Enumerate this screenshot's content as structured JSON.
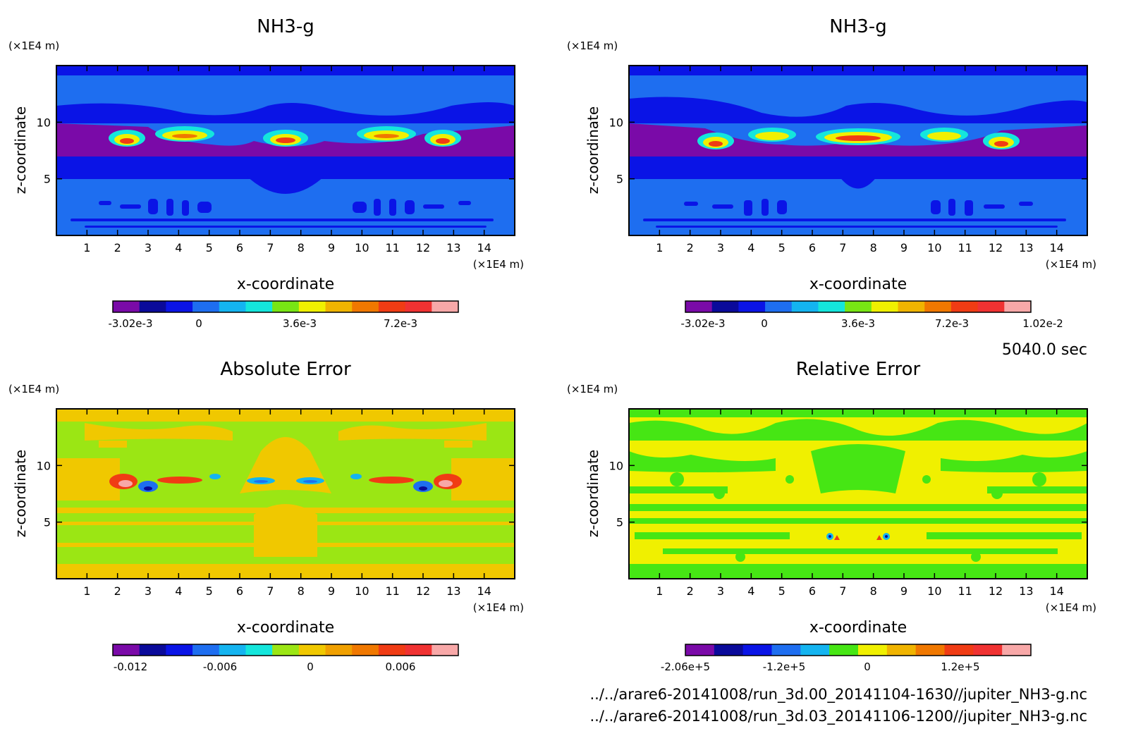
{
  "time_label": "5040.0 sec",
  "footer": {
    "file1": "../../arare6-20141008/run_3d.00_20141104-1630//jupiter_NH3-g.nc",
    "file2": "../../arare6-20141008/run_3d.03_20141106-1200//jupiter_NH3-g.nc"
  },
  "chart_data": [
    {
      "type": "heatmap",
      "title": "NH3-g",
      "xlabel": "x-coordinate",
      "ylabel": "z-coordinate",
      "x_unit": "(×1E4 m)",
      "y_unit": "(×1E4 m)",
      "xlim": [
        0,
        15
      ],
      "ylim": [
        0,
        15
      ],
      "x_ticks": [
        "1",
        "2",
        "3",
        "4",
        "5",
        "6",
        "7",
        "8",
        "9",
        "10",
        "11",
        "12",
        "13",
        "14"
      ],
      "y_ticks": [
        "5",
        "10"
      ],
      "colorbar": {
        "colors": [
          "#7a0aa8",
          "#0a0a9a",
          "#0a14e6",
          "#1e6ef0",
          "#14b4f0",
          "#14e6dc",
          "#78e614",
          "#f0f000",
          "#f0b400",
          "#f07800",
          "#f03c14",
          "#f03232",
          "#f8a8a8"
        ],
        "tick_labels": [
          "-3.02e-3",
          "0",
          "3.6e-3",
          "7.2e-3"
        ]
      }
    },
    {
      "type": "heatmap",
      "title": "NH3-g",
      "xlabel": "x-coordinate",
      "ylabel": "z-coordinate",
      "x_unit": "(×1E4 m)",
      "y_unit": "(×1E4 m)",
      "xlim": [
        0,
        15
      ],
      "ylim": [
        0,
        15
      ],
      "x_ticks": [
        "1",
        "2",
        "3",
        "4",
        "5",
        "6",
        "7",
        "8",
        "9",
        "10",
        "11",
        "12",
        "13",
        "14"
      ],
      "y_ticks": [
        "5",
        "10"
      ],
      "colorbar": {
        "colors": [
          "#7a0aa8",
          "#0a0a9a",
          "#0a14e6",
          "#1e6ef0",
          "#14b4f0",
          "#14e6dc",
          "#78e614",
          "#f0f000",
          "#f0b400",
          "#f07800",
          "#f03c14",
          "#f03232",
          "#f8a8a8"
        ],
        "tick_labels": [
          "-3.02e-3",
          "0",
          "3.6e-3",
          "7.2e-3",
          "1.02e-2"
        ]
      }
    },
    {
      "type": "heatmap",
      "title": "Absolute Error",
      "xlabel": "x-coordinate",
      "ylabel": "z-coordinate",
      "x_unit": "(×1E4 m)",
      "y_unit": "(×1E4 m)",
      "xlim": [
        0,
        15
      ],
      "ylim": [
        0,
        15
      ],
      "x_ticks": [
        "1",
        "2",
        "3",
        "4",
        "5",
        "6",
        "7",
        "8",
        "9",
        "10",
        "11",
        "12",
        "13",
        "14"
      ],
      "y_ticks": [
        "5",
        "10"
      ],
      "colorbar": {
        "colors": [
          "#7a0aa8",
          "#0a0a9a",
          "#0a14e6",
          "#1e6ef0",
          "#14b4f0",
          "#14e6dc",
          "#9be614",
          "#f0c800",
          "#f0a000",
          "#f07800",
          "#f03c14",
          "#f03232",
          "#f8a8a8"
        ],
        "tick_labels": [
          "-0.012",
          "-0.006",
          "0",
          "0.006"
        ]
      }
    },
    {
      "type": "heatmap",
      "title": "Relative Error",
      "xlabel": "x-coordinate",
      "ylabel": "z-coordinate",
      "x_unit": "(×1E4 m)",
      "y_unit": "(×1E4 m)",
      "xlim": [
        0,
        15
      ],
      "ylim": [
        0,
        15
      ],
      "x_ticks": [
        "1",
        "2",
        "3",
        "4",
        "5",
        "6",
        "7",
        "8",
        "9",
        "10",
        "11",
        "12",
        "13",
        "14"
      ],
      "y_ticks": [
        "5",
        "10"
      ],
      "colorbar": {
        "colors": [
          "#7a0aa8",
          "#0a0a9a",
          "#0a14e6",
          "#1e6ef0",
          "#14b4f0",
          "#46e614",
          "#f0f000",
          "#f0b400",
          "#f07800",
          "#f03c14",
          "#f03232",
          "#f8a8a8"
        ],
        "tick_labels": [
          "-2.06e+5",
          "-1.2e+5",
          "0",
          "1.2e+5"
        ]
      }
    }
  ]
}
